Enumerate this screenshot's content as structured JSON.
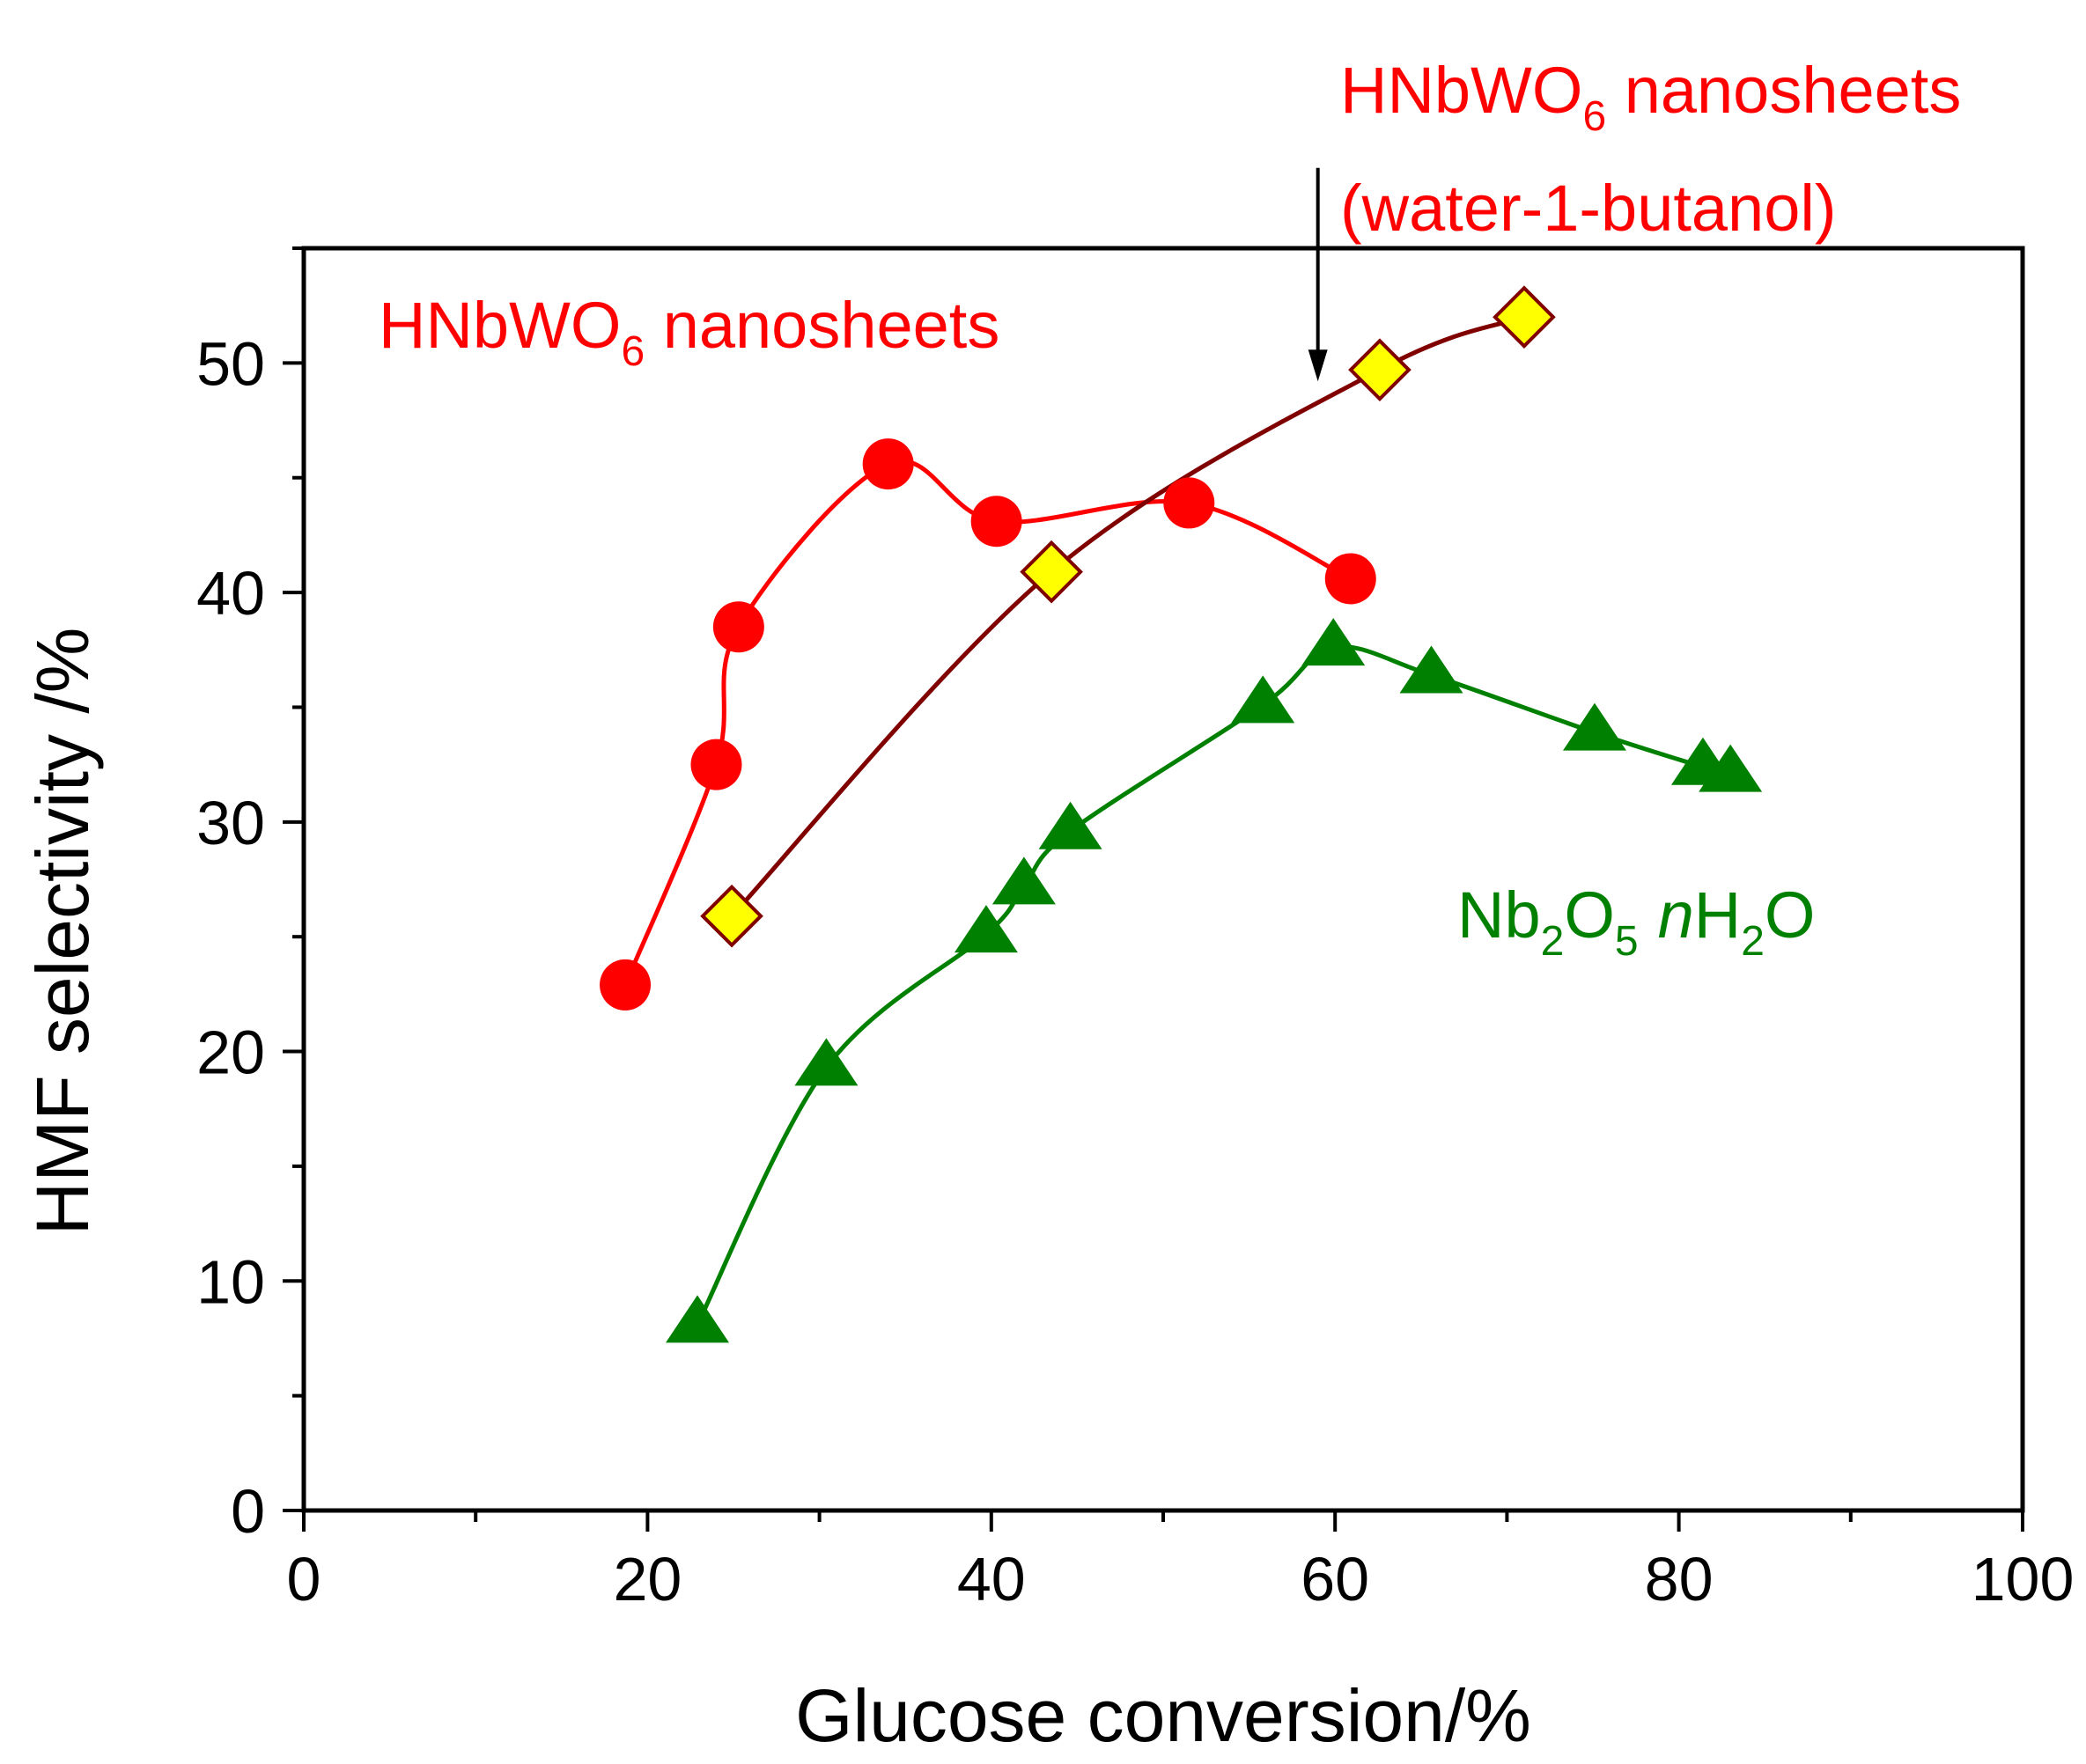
{
  "chart_data": {
    "type": "scatter",
    "xlabel": "Glucose conversion/%",
    "ylabel": "HMF selectivity /%",
    "xlim": [
      0,
      100
    ],
    "ylim": [
      0,
      55
    ],
    "xticks": [
      0,
      20,
      40,
      60,
      80,
      100
    ],
    "yticks": [
      0,
      10,
      20,
      30,
      40,
      50
    ],
    "grid": false,
    "series": [
      {
        "name": "HNbWO6 nanosheets",
        "color": "#ff0000",
        "marker": "circle",
        "x": [
          18.7,
          24.0,
          25.3,
          34.0,
          40.3,
          51.5,
          60.9
        ],
        "y": [
          22.9,
          32.5,
          38.5,
          45.6,
          43.1,
          43.9,
          40.6
        ]
      },
      {
        "name": "HNbWO6 nanosheets (water-1-butanol)",
        "color": "#800000",
        "marker": "diamond",
        "marker_fill": "#ffff00",
        "x": [
          24.9,
          43.5,
          62.6,
          71.0
        ],
        "y": [
          25.9,
          40.9,
          49.7,
          52.0
        ]
      },
      {
        "name": "Nb2O5 nH2O",
        "color": "#008000",
        "marker": "triangle",
        "x": [
          22.9,
          30.4,
          39.7,
          41.9,
          44.6,
          55.8,
          59.9,
          65.6,
          75.1,
          81.4,
          83.0
        ],
        "y": [
          8.1,
          19.3,
          25.1,
          27.2,
          29.6,
          35.1,
          37.6,
          36.4,
          33.9,
          32.4,
          32.1
        ]
      }
    ],
    "annotations": {
      "hnbwo6": {
        "main": "HNbWO",
        "sub": "6",
        "tail": " nanosheets"
      },
      "hnbwo6_butanol": {
        "main": "HNbWO",
        "sub": "6",
        "tail": " nanosheets",
        "line2": "(water-1-butanol)"
      },
      "nb2o5": {
        "p1": "Nb",
        "s1": "2",
        "p2": "O",
        "s2": "5",
        "n": "n",
        "p3": "H",
        "s3": "2",
        "p4": "O"
      }
    },
    "arrow": {
      "from": [
        59.0,
        58.5
      ],
      "to": [
        59.0,
        49.2
      ]
    }
  }
}
